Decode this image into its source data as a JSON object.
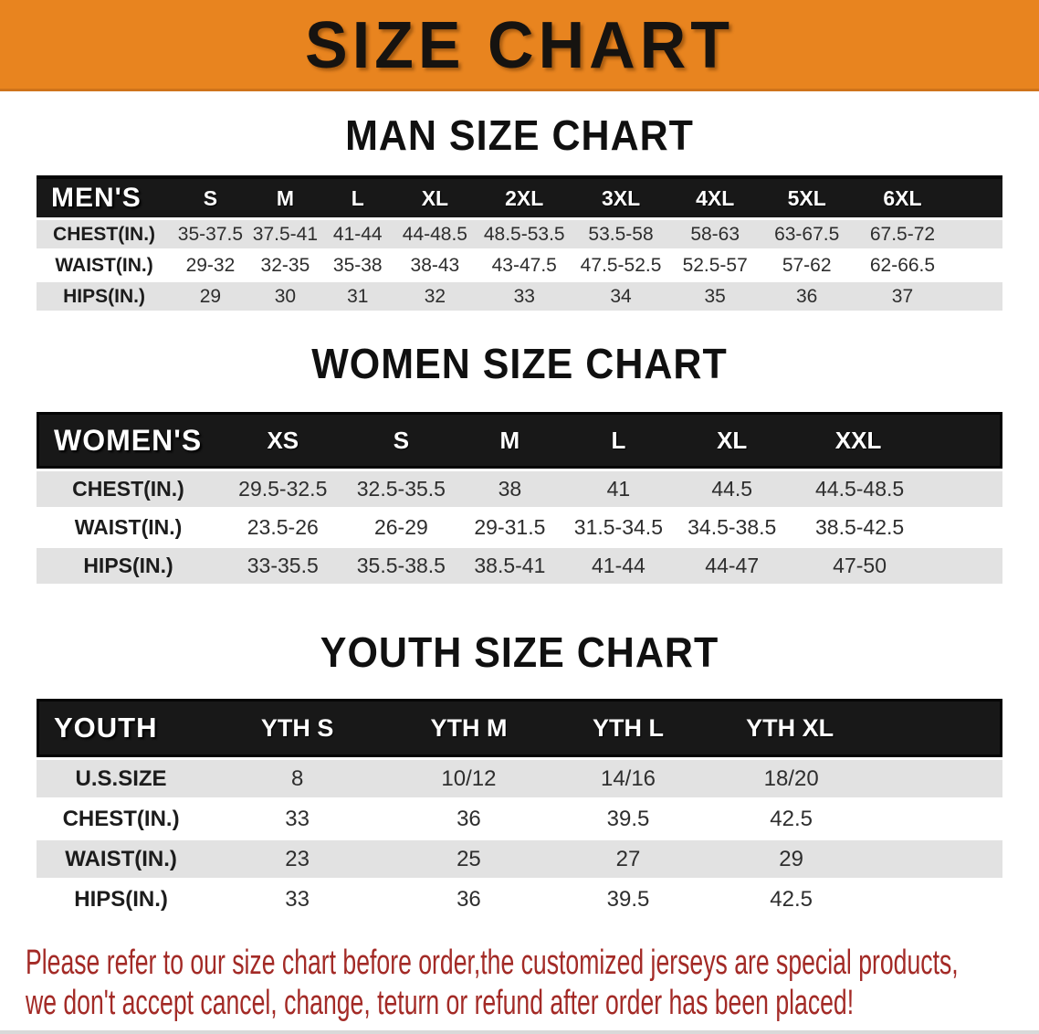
{
  "banner": {
    "title": "SIZE CHART",
    "bg_color": "#E8841F",
    "text_color": "#161310"
  },
  "sections": {
    "men": {
      "heading": "MAN SIZE CHART",
      "header_label": "MEN'S",
      "columns": [
        "S",
        "M",
        "L",
        "XL",
        "2XL",
        "3XL",
        "4XL",
        "5XL",
        "6XL"
      ],
      "rows": [
        {
          "label": "CHEST(IN.)",
          "values": [
            "35-37.5",
            "37.5-41",
            "41-44",
            "44-48.5",
            "48.5-53.5",
            "53.5-58",
            "58-63",
            "63-67.5",
            "67.5-72"
          ]
        },
        {
          "label": "WAIST(IN.)",
          "values": [
            "29-32",
            "32-35",
            "35-38",
            "38-43",
            "43-47.5",
            "47.5-52.5",
            "52.5-57",
            "57-62",
            "62-66.5"
          ]
        },
        {
          "label": "HIPS(IN.)",
          "values": [
            "29",
            "30",
            "31",
            "32",
            "33",
            "34",
            "35",
            "36",
            "37"
          ]
        }
      ]
    },
    "women": {
      "heading": "WOMEN SIZE CHART",
      "header_label": "WOMEN'S",
      "columns": [
        "XS",
        "S",
        "M",
        "L",
        "XL",
        "XXL"
      ],
      "rows": [
        {
          "label": "CHEST(IN.)",
          "values": [
            "29.5-32.5",
            "32.5-35.5",
            "38",
            "41",
            "44.5",
            "44.5-48.5"
          ]
        },
        {
          "label": "WAIST(IN.)",
          "values": [
            "23.5-26",
            "26-29",
            "29-31.5",
            "31.5-34.5",
            "34.5-38.5",
            "38.5-42.5"
          ]
        },
        {
          "label": "HIPS(IN.)",
          "values": [
            "33-35.5",
            "35.5-38.5",
            "38.5-41",
            "41-44",
            "44-47",
            "47-50"
          ]
        }
      ]
    },
    "youth": {
      "heading": "YOUTH SIZE CHART",
      "header_label": "YOUTH",
      "columns": [
        "YTH S",
        "YTH M",
        "YTH L",
        "YTH XL"
      ],
      "rows": [
        {
          "label": "U.S.SIZE",
          "values": [
            "8",
            "10/12",
            "14/16",
            "18/20"
          ]
        },
        {
          "label": "CHEST(IN.)",
          "values": [
            "33",
            "36",
            "39.5",
            "42.5"
          ]
        },
        {
          "label": "WAIST(IN.)",
          "values": [
            "23",
            "25",
            "27",
            "29"
          ]
        },
        {
          "label": "HIPS(IN.)",
          "values": [
            "33",
            "36",
            "39.5",
            "42.5"
          ]
        }
      ]
    }
  },
  "note": {
    "line1": "Please refer to our size chart before order,the customized jerseys are special products,",
    "line2": "we don't accept cancel, change, teturn or refund after order has been placed!",
    "color": "#A32A26"
  }
}
